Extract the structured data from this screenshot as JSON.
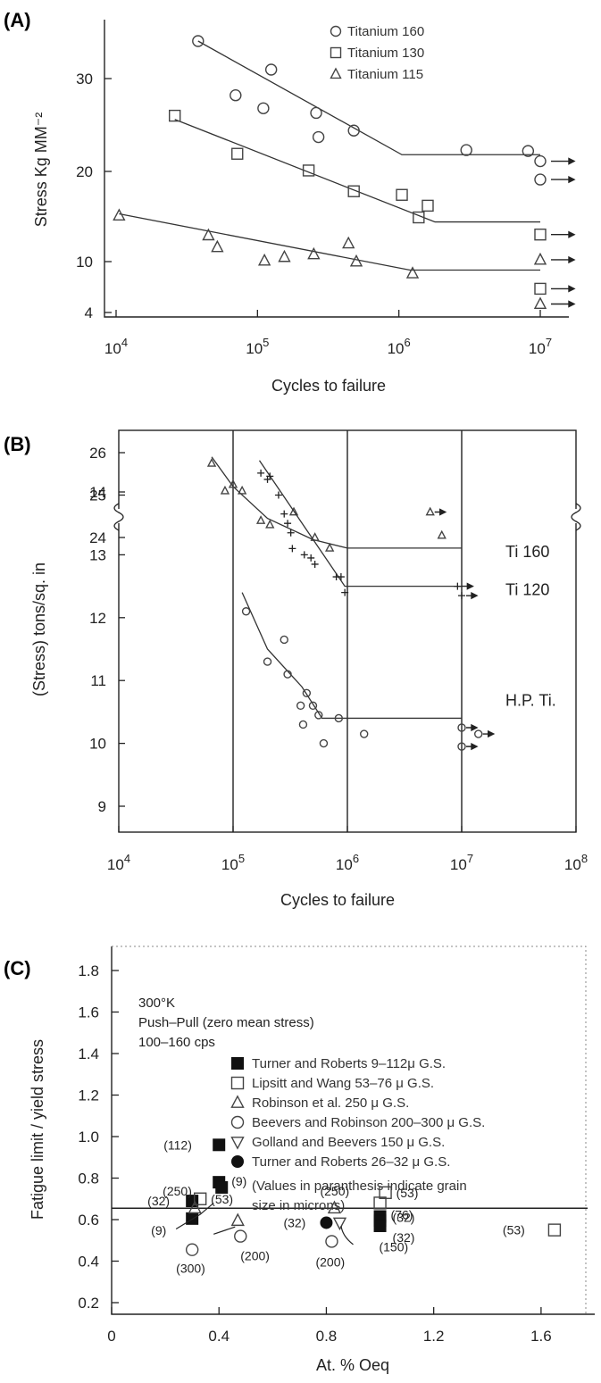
{
  "chart_data": [
    {
      "panel": "(A)",
      "type": "scatter",
      "xscale": "log",
      "xlim": [
        10000.0,
        10000000.0
      ],
      "ylim": [
        4,
        35
      ],
      "xlabel": "Cycles to failure",
      "ylabel": "Stress Kg MM⁻²",
      "x_ticks": [
        10000.0,
        100000.0,
        1000000.0,
        10000000.0
      ],
      "x_tick_labels": [
        "10",
        "10",
        "10",
        "10"
      ],
      "x_tick_exps": [
        "4",
        "5",
        "6",
        "7"
      ],
      "y_ticks": [
        4,
        10,
        20,
        30
      ],
      "y_tick_labels": [
        "4",
        "10",
        "20",
        "30"
      ],
      "legend": [
        "Titanium 160",
        "Titanium 130",
        "Titanium 115"
      ],
      "legend_position": "top-right",
      "series": [
        {
          "name": "Titanium 160",
          "marker": "circle",
          "points": [
            [
              38000.0,
              34.2
            ],
            [
              70000.0,
              28.2
            ],
            [
              125000.0,
              31.0
            ],
            [
              110000.0,
              26.8
            ],
            [
              260000.0,
              26.3
            ],
            [
              270000.0,
              23.7
            ],
            [
              480000.0,
              24.4
            ],
            [
              3000000.0,
              22.3
            ],
            [
              8200000.0,
              22.2
            ],
            [
              10000000.0,
              21.1
            ],
            [
              10000000.0,
              19.1
            ]
          ],
          "runouts": [
            [
              10000000.0,
              21.1
            ],
            [
              10000000.0,
              19.1
            ]
          ],
          "fit": [
            [
              38000.0,
              34.2
            ],
            [
              1050000.0,
              21.8
            ],
            [
              10000000.0,
              21.8
            ]
          ]
        },
        {
          "name": "Titanium 130",
          "marker": "square",
          "points": [
            [
              26000.0,
              26.0
            ],
            [
              72000.0,
              21.9
            ],
            [
              230000.0,
              20.1
            ],
            [
              480000.0,
              17.8
            ],
            [
              1050000.0,
              17.4
            ],
            [
              1380000.0,
              14.9
            ],
            [
              1600000.0,
              16.2
            ],
            [
              10000000.0,
              13.0
            ],
            [
              10000000.0,
              6.8
            ]
          ],
          "runouts": [
            [
              10000000.0,
              13.0
            ],
            [
              10000000.0,
              6.8
            ]
          ],
          "fit": [
            [
              26000.0,
              25.6
            ],
            [
              1800000.0,
              14.4
            ],
            [
              10000000.0,
              14.4
            ]
          ]
        },
        {
          "name": "Titanium 115",
          "marker": "triangle",
          "points": [
            [
              10500.0,
              15.1
            ],
            [
              45000.0,
              12.9
            ],
            [
              52000.0,
              11.6
            ],
            [
              112000.0,
              10.1
            ],
            [
              155000.0,
              10.5
            ],
            [
              250000.0,
              10.8
            ],
            [
              440000.0,
              12.0
            ],
            [
              500000.0,
              10.0
            ],
            [
              1250000.0,
              8.6
            ],
            [
              10000000.0,
              10.2
            ],
            [
              10000000.0,
              5.0
            ]
          ],
          "runouts": [
            [
              10000000.0,
              10.2
            ],
            [
              10000000.0,
              5.0
            ]
          ],
          "fit": [
            [
              10500.0,
              15.3
            ],
            [
              1200000.0,
              9.0
            ],
            [
              10000000.0,
              9.0
            ]
          ]
        }
      ]
    },
    {
      "panel": "(B)",
      "type": "scatter",
      "xscale": "log",
      "xlim": [
        10000.0,
        100000000.0
      ],
      "xlabel": "Cycles to failure",
      "ylabel": "(Stress) tons/sq. in",
      "x_ticks": [
        10000.0,
        100000.0,
        1000000.0,
        10000000.0,
        100000000.0
      ],
      "x_tick_labels": [
        "10",
        "10",
        "10",
        "10",
        "10"
      ],
      "x_tick_exps": [
        "4",
        "5",
        "6",
        "7",
        "8"
      ],
      "y_ticks": [
        9,
        10,
        11,
        12,
        13,
        14,
        24,
        25,
        26
      ],
      "y_tick_labels": [
        "9",
        "10",
        "11",
        "12",
        "13",
        "14",
        "24",
        "25",
        "26"
      ],
      "y_axis_break": "between 14 and 24",
      "grid": "vertical lines at each decade",
      "series": [
        {
          "name": "Ti 160",
          "marker": "triangle",
          "points": [
            [
              65000.0,
              25.75
            ],
            [
              85000.0,
              25.1
            ],
            [
              100000.0,
              25.25
            ],
            [
              120000.0,
              25.1
            ],
            [
              175000.0,
              24.4
            ],
            [
              210000.0,
              24.3
            ],
            [
              340000.0,
              24.6
            ],
            [
              520000.0,
              24.0
            ],
            [
              700000.0,
              23.75
            ],
            [
              5300000.0,
              24.6
            ],
            [
              6700000.0,
              24.05
            ]
          ],
          "runouts": [
            [
              5300000.0,
              24.6
            ]
          ],
          "fit": [
            [
              65000.0,
              25.9
            ],
            [
              100000.0,
              25.2
            ],
            [
              200000.0,
              24.45
            ],
            [
              500000.0,
              23.95
            ],
            [
              1000000.0,
              23.75
            ],
            [
              10000000.0,
              23.75
            ]
          ]
        },
        {
          "name": "Ti 120",
          "marker": "plus",
          "points": [
            [
              175000.0,
              14.3
            ],
            [
              200000.0,
              14.2
            ],
            [
              210000.0,
              14.25
            ],
            [
              250000.0,
              13.95
            ],
            [
              280000.0,
              13.65
            ],
            [
              300000.0,
              13.5
            ],
            [
              320000.0,
              13.35
            ],
            [
              330000.0,
              13.1
            ],
            [
              420000.0,
              13.0
            ],
            [
              480000.0,
              12.95
            ],
            [
              520000.0,
              12.85
            ],
            [
              800000.0,
              12.65
            ],
            [
              880000.0,
              12.65
            ],
            [
              950000.0,
              12.4
            ],
            [
              9200000.0,
              12.5
            ],
            [
              10000000.0,
              12.35
            ]
          ],
          "runouts": [
            [
              9200000.0,
              12.5
            ],
            [
              10000000.0,
              12.35
            ]
          ],
          "fit": [
            [
              170000.0,
              14.5
            ],
            [
              950000.0,
              12.5
            ],
            [
              10000000.0,
              12.5
            ]
          ]
        },
        {
          "name": "H.P. Ti.",
          "marker": "circle",
          "points": [
            [
              130000.0,
              12.1
            ],
            [
              200000.0,
              11.3
            ],
            [
              280000.0,
              11.65
            ],
            [
              300000.0,
              11.1
            ],
            [
              390000.0,
              10.6
            ],
            [
              410000.0,
              10.3
            ],
            [
              440000.0,
              10.8
            ],
            [
              500000.0,
              10.6
            ],
            [
              560000.0,
              10.45
            ],
            [
              620000.0,
              10.0
            ],
            [
              840000.0,
              10.4
            ],
            [
              1400000.0,
              10.15
            ],
            [
              10000000.0,
              10.25
            ],
            [
              10000000.0,
              9.95
            ],
            [
              14000000.0,
              10.15
            ]
          ],
          "runouts": [
            [
              10000000.0,
              10.25
            ],
            [
              10000000.0,
              9.95
            ],
            [
              14000000.0,
              10.15
            ]
          ],
          "fit": [
            [
              120000.0,
              12.4
            ],
            [
              200000.0,
              11.5
            ],
            [
              400000.0,
              10.9
            ],
            [
              600000.0,
              10.4
            ],
            [
              1000000.0,
              10.4
            ],
            [
              10000000.0,
              10.4
            ]
          ]
        }
      ]
    },
    {
      "panel": "(C)",
      "type": "scatter",
      "xlim": [
        0,
        1.8
      ],
      "ylim": [
        0.2,
        1.8
      ],
      "xlabel": "At. % Oeq",
      "ylabel": "Fatigue limit / yield stress",
      "x_ticks": [
        0,
        0.4,
        0.8,
        1.2,
        1.6
      ],
      "x_tick_labels": [
        "0",
        "0.4",
        "0.8",
        "1.2",
        "1.6"
      ],
      "y_ticks": [
        0.2,
        0.4,
        0.6,
        0.8,
        1.0,
        1.2,
        1.4,
        1.6,
        1.8
      ],
      "y_tick_labels": [
        "0.2",
        "0.4",
        "0.6",
        "0.8",
        "1.0",
        "1.2",
        "1.4",
        "1.6",
        "1.8"
      ],
      "reference_line_y": 0.655,
      "notes": [
        "300°K",
        "Push–Pull (zero mean stress)",
        "100–160 cps"
      ],
      "legend": [
        "Turner and Roberts    9–112μ G.S.",
        "Lipsitt and Wang       53–76 μ G.S.",
        "Robinson et al.     250 μ G.S.",
        "Beevers and Robinson  200–300 μ G.S.",
        "Golland and Beevers  150 μ G.S.",
        "Turner and Roberts  26–32 μ G.S."
      ],
      "legend_note": [
        "(Values in paranthesis indicate grain",
        "size in microns)"
      ],
      "series": [
        {
          "name": "Turner and Roberts 9–112μ G.S.",
          "marker": "filled-square",
          "points": [
            [
              0.4,
              0.96,
              "(112)"
            ],
            [
              0.4,
              0.78,
              "(9)"
            ],
            [
              0.41,
              0.755,
              ""
            ],
            [
              0.3,
              0.69,
              "(32)"
            ],
            [
              0.3,
              0.605,
              "(9)"
            ],
            [
              1.0,
              0.615,
              "(32)"
            ],
            [
              1.0,
              0.595,
              ""
            ],
            [
              1.0,
              0.57,
              "(32)"
            ]
          ]
        },
        {
          "name": "Lipsitt and Wang 53–76 μ G.S.",
          "marker": "open-square",
          "points": [
            [
              0.33,
              0.7,
              "(53)"
            ],
            [
              1.02,
              0.73,
              "(53)"
            ],
            [
              1.0,
              0.68,
              "(76)"
            ],
            [
              1.65,
              0.55,
              "(53)"
            ]
          ]
        },
        {
          "name": "Robinson et al. 250 μ G.S.",
          "marker": "open-triangle",
          "points": [
            [
              0.31,
              0.655,
              "(250)"
            ],
            [
              0.47,
              0.595,
              ""
            ],
            [
              0.83,
              0.655,
              "(250)"
            ]
          ]
        },
        {
          "name": "Beevers and Robinson 200–300 μ G.S.",
          "marker": "open-circle",
          "points": [
            [
              0.3,
              0.455,
              "(300)"
            ],
            [
              0.48,
              0.52,
              "(200)"
            ],
            [
              0.82,
              0.495,
              "(200)"
            ]
          ]
        },
        {
          "name": "Golland and Beevers 150 μ G.S.",
          "marker": "open-down-triangle",
          "points": [
            [
              0.85,
              0.585,
              "(150)"
            ]
          ]
        },
        {
          "name": "Turner and Roberts 26–32 μ G.S.",
          "marker": "filled-circle",
          "points": [
            [
              0.8,
              0.585,
              "(32)"
            ]
          ]
        }
      ]
    }
  ]
}
